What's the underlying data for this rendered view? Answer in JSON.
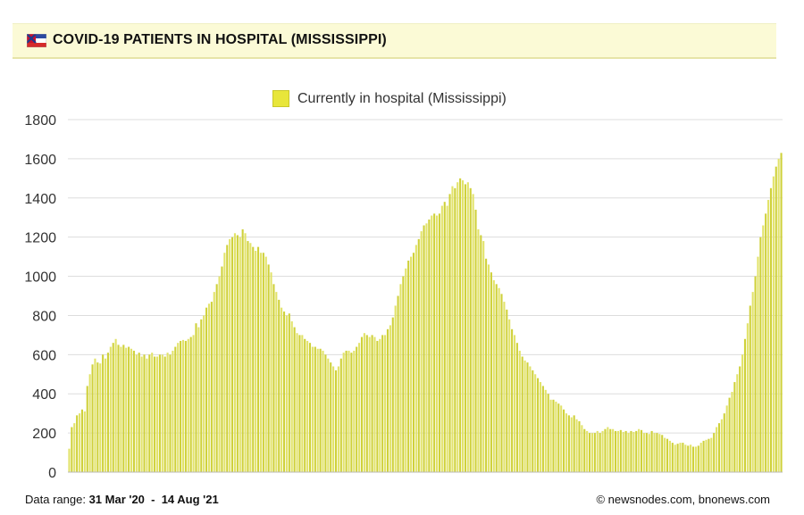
{
  "header": {
    "title": "COVID-19 PATIENTS IN HOSPITAL (MISSISSIPPI)",
    "flag_icon": "mississippi-flag-icon"
  },
  "footer": {
    "range_label": "Data range:",
    "range_value": "31 Mar '20  -  14 Aug '21",
    "credit": "© newsnodes.com, bnonews.com"
  },
  "colors": {
    "bar_fill": "#cfd13a",
    "bar_light": "#e2e36a",
    "grid": "#dddddd",
    "header_bg": "#fbfad6"
  },
  "chart_data": {
    "type": "bar",
    "title": "COVID-19 PATIENTS IN HOSPITAL (MISSISSIPPI)",
    "xlabel": "",
    "ylabel": "",
    "ylim": [
      0,
      1800
    ],
    "yticks": [
      0,
      200,
      400,
      600,
      800,
      1000,
      1200,
      1400,
      1600,
      1800
    ],
    "legend_position": "top-center",
    "grid": true,
    "series": [
      {
        "name": "Currently in hospital (Mississippi)",
        "date_range": [
          "31 Mar '20",
          "14 Aug '21"
        ],
        "values": [
          120,
          230,
          250,
          290,
          300,
          320,
          310,
          440,
          500,
          550,
          580,
          560,
          555,
          600,
          580,
          610,
          640,
          660,
          680,
          650,
          640,
          650,
          635,
          640,
          630,
          620,
          600,
          610,
          590,
          600,
          580,
          600,
          610,
          590,
          590,
          600,
          600,
          590,
          610,
          600,
          620,
          640,
          660,
          670,
          675,
          670,
          680,
          690,
          700,
          760,
          740,
          780,
          800,
          840,
          860,
          870,
          920,
          960,
          1000,
          1050,
          1120,
          1160,
          1190,
          1200,
          1220,
          1210,
          1200,
          1240,
          1220,
          1180,
          1170,
          1150,
          1130,
          1150,
          1120,
          1120,
          1100,
          1060,
          1020,
          960,
          920,
          880,
          840,
          820,
          800,
          810,
          770,
          740,
          710,
          700,
          700,
          680,
          670,
          660,
          640,
          640,
          630,
          630,
          620,
          600,
          580,
          560,
          540,
          520,
          540,
          580,
          610,
          620,
          620,
          610,
          620,
          640,
          660,
          690,
          710,
          700,
          690,
          700,
          690,
          670,
          680,
          700,
          700,
          730,
          750,
          790,
          850,
          900,
          960,
          1000,
          1040,
          1080,
          1100,
          1120,
          1160,
          1190,
          1230,
          1260,
          1270,
          1290,
          1310,
          1320,
          1310,
          1320,
          1360,
          1380,
          1360,
          1420,
          1460,
          1450,
          1480,
          1500,
          1490,
          1470,
          1480,
          1450,
          1420,
          1340,
          1240,
          1210,
          1180,
          1090,
          1060,
          1020,
          980,
          960,
          940,
          910,
          870,
          830,
          780,
          730,
          700,
          660,
          620,
          590,
          570,
          560,
          540,
          520,
          500,
          480,
          460,
          440,
          420,
          400,
          370,
          370,
          360,
          350,
          340,
          320,
          300,
          290,
          280,
          290,
          270,
          260,
          240,
          220,
          210,
          200,
          200,
          200,
          210,
          200,
          210,
          220,
          230,
          220,
          220,
          210,
          210,
          215,
          205,
          210,
          200,
          210,
          205,
          210,
          220,
          215,
          200,
          200,
          195,
          210,
          200,
          200,
          195,
          190,
          175,
          170,
          160,
          150,
          140,
          145,
          150,
          150,
          140,
          135,
          140,
          130,
          130,
          135,
          150,
          160,
          165,
          170,
          175,
          200,
          230,
          250,
          270,
          300,
          340,
          380,
          410,
          460,
          500,
          540,
          600,
          680,
          760,
          850,
          920,
          1000,
          1100,
          1200,
          1260,
          1320,
          1390,
          1450,
          1510,
          1560,
          1600,
          1630
        ]
      }
    ]
  }
}
